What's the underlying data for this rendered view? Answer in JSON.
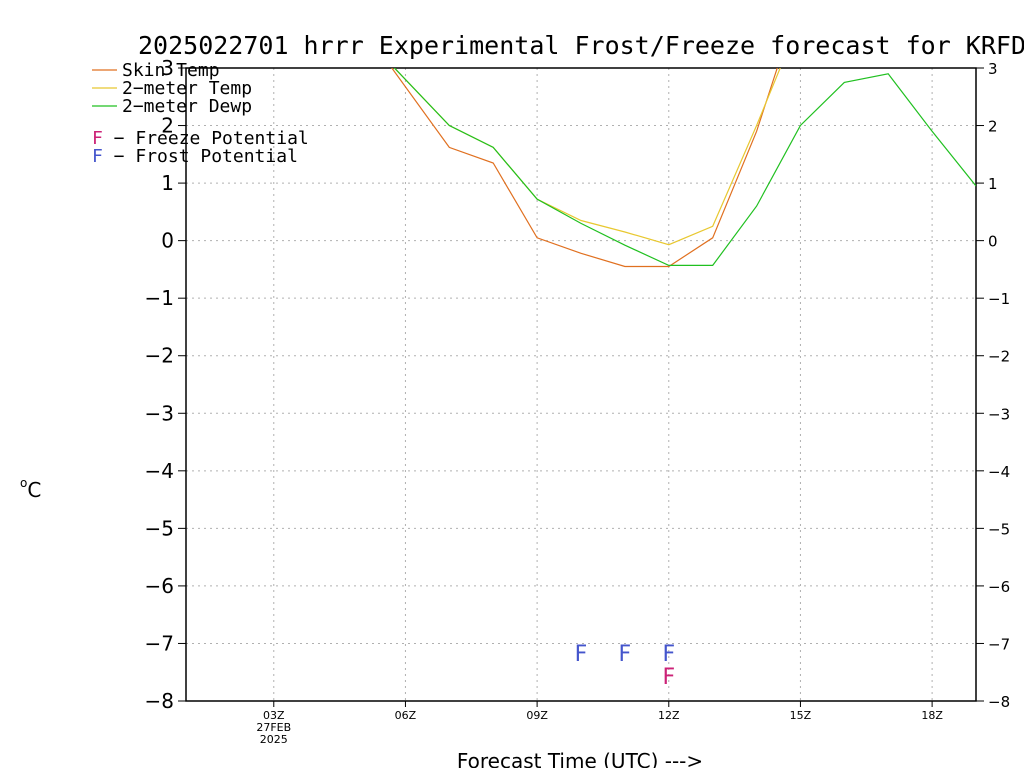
{
  "chart_data": {
    "type": "line",
    "title": "2025022701 hrrr Experimental Frost/Freeze forecast for KRFD",
    "xlabel": "Forecast Time (UTC) --->",
    "ylabel_sup": "o",
    "ylabel": "C",
    "ylim": [
      -8,
      3
    ],
    "xlim": [
      1,
      19
    ],
    "yticks": [
      3,
      2,
      1,
      0,
      -1,
      -2,
      -3,
      -4,
      -5,
      -6,
      -7,
      -8
    ],
    "ytick_labels": [
      "3",
      "2",
      "1",
      "0",
      "−1",
      "−2",
      "−3",
      "−4",
      "−5",
      "−6",
      "−7",
      "−8"
    ],
    "xticks": [
      {
        "x": 3,
        "label": "03Z",
        "sub1": "27FEB",
        "sub2": "2025"
      },
      {
        "x": 6,
        "label": "06Z"
      },
      {
        "x": 9,
        "label": "09Z"
      },
      {
        "x": 12,
        "label": "12Z"
      },
      {
        "x": 15,
        "label": "15Z"
      },
      {
        "x": 18,
        "label": "18Z"
      }
    ],
    "grid": true,
    "series": [
      {
        "name": "Skin Temp",
        "color": "#e07020",
        "x": [
          5.5,
          7,
          8,
          9,
          10,
          11,
          12,
          13,
          14,
          14.6
        ],
        "y": [
          3.2,
          1.62,
          1.35,
          0.05,
          -0.22,
          -0.45,
          -0.45,
          0.05,
          1.9,
          3.3
        ]
      },
      {
        "name": "2-meter Temp",
        "color": "#e8c830",
        "x": [
          5.5,
          7,
          8,
          9,
          10,
          11,
          12,
          13,
          14,
          14.7
        ],
        "y": [
          3.2,
          2.0,
          1.62,
          0.72,
          0.35,
          0.15,
          -0.07,
          0.25,
          2.0,
          3.3
        ]
      },
      {
        "name": "2-meter Dewp",
        "color": "#20c020",
        "x": [
          5.5,
          7,
          8,
          9,
          10,
          11,
          12,
          13,
          14,
          15,
          16,
          17,
          18,
          19
        ],
        "y": [
          3.2,
          2.0,
          1.62,
          0.72,
          0.3,
          -0.08,
          -0.43,
          -0.43,
          0.6,
          2.0,
          2.75,
          2.9,
          1.9,
          0.95
        ]
      }
    ],
    "frost_marks": {
      "label": "F",
      "color": "#4455cc",
      "x": [
        10,
        11,
        12
      ],
      "y": -7.15
    },
    "freeze_marks": {
      "label": "F",
      "color": "#cc2277",
      "x": [
        12
      ],
      "y": -7.55
    },
    "legend": {
      "placement": "top-left",
      "entries": [
        {
          "label": "Skin Temp",
          "color": "#e07020"
        },
        {
          "label": "2−meter Temp",
          "color": "#e8c830"
        },
        {
          "label": "2−meter Dewp",
          "color": "#20c020"
        }
      ],
      "flags": [
        {
          "letter": "F",
          "text": " − Freeze Potential",
          "color": "#cc2277"
        },
        {
          "letter": "F",
          "text": " − Frost Potential",
          "color": "#4455cc"
        }
      ]
    }
  }
}
